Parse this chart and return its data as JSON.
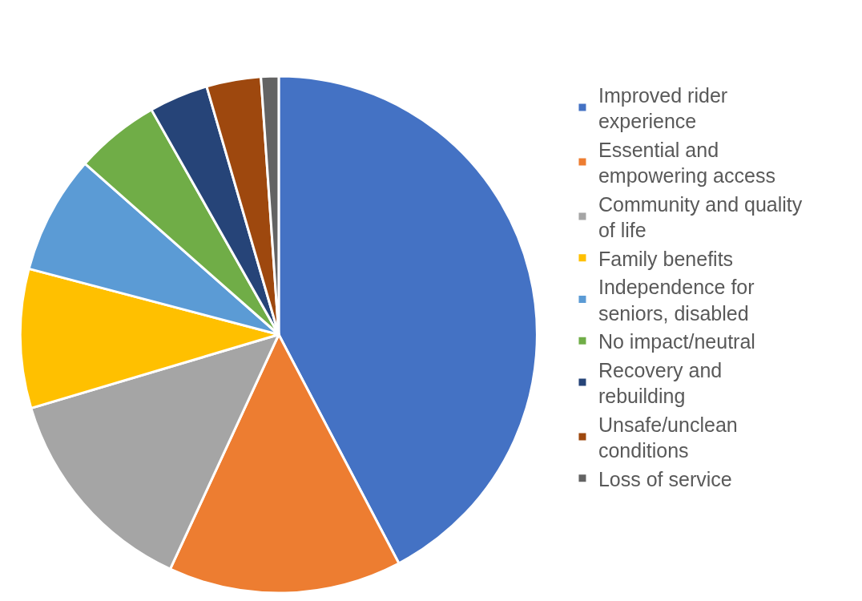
{
  "chart_data": {
    "type": "pie",
    "legend": "right",
    "categories": [
      "Improved rider experience",
      "Essential and empowering access",
      "Community and quality of life",
      "Family benefits",
      "Independence for seniors, disabled",
      "No impact/neutral",
      "Recovery and rebuilding",
      "Unsafe/unclean conditions",
      "Loss of service"
    ],
    "values": [
      42.3,
      14.6,
      13.5,
      8.7,
      7.4,
      5.3,
      3.7,
      3.4,
      1.1
    ],
    "colors": [
      "#4472c4",
      "#ed7d31",
      "#a5a5a5",
      "#ffc000",
      "#5b9bd5",
      "#70ad47",
      "#264478",
      "#9e480e",
      "#636363"
    ]
  }
}
